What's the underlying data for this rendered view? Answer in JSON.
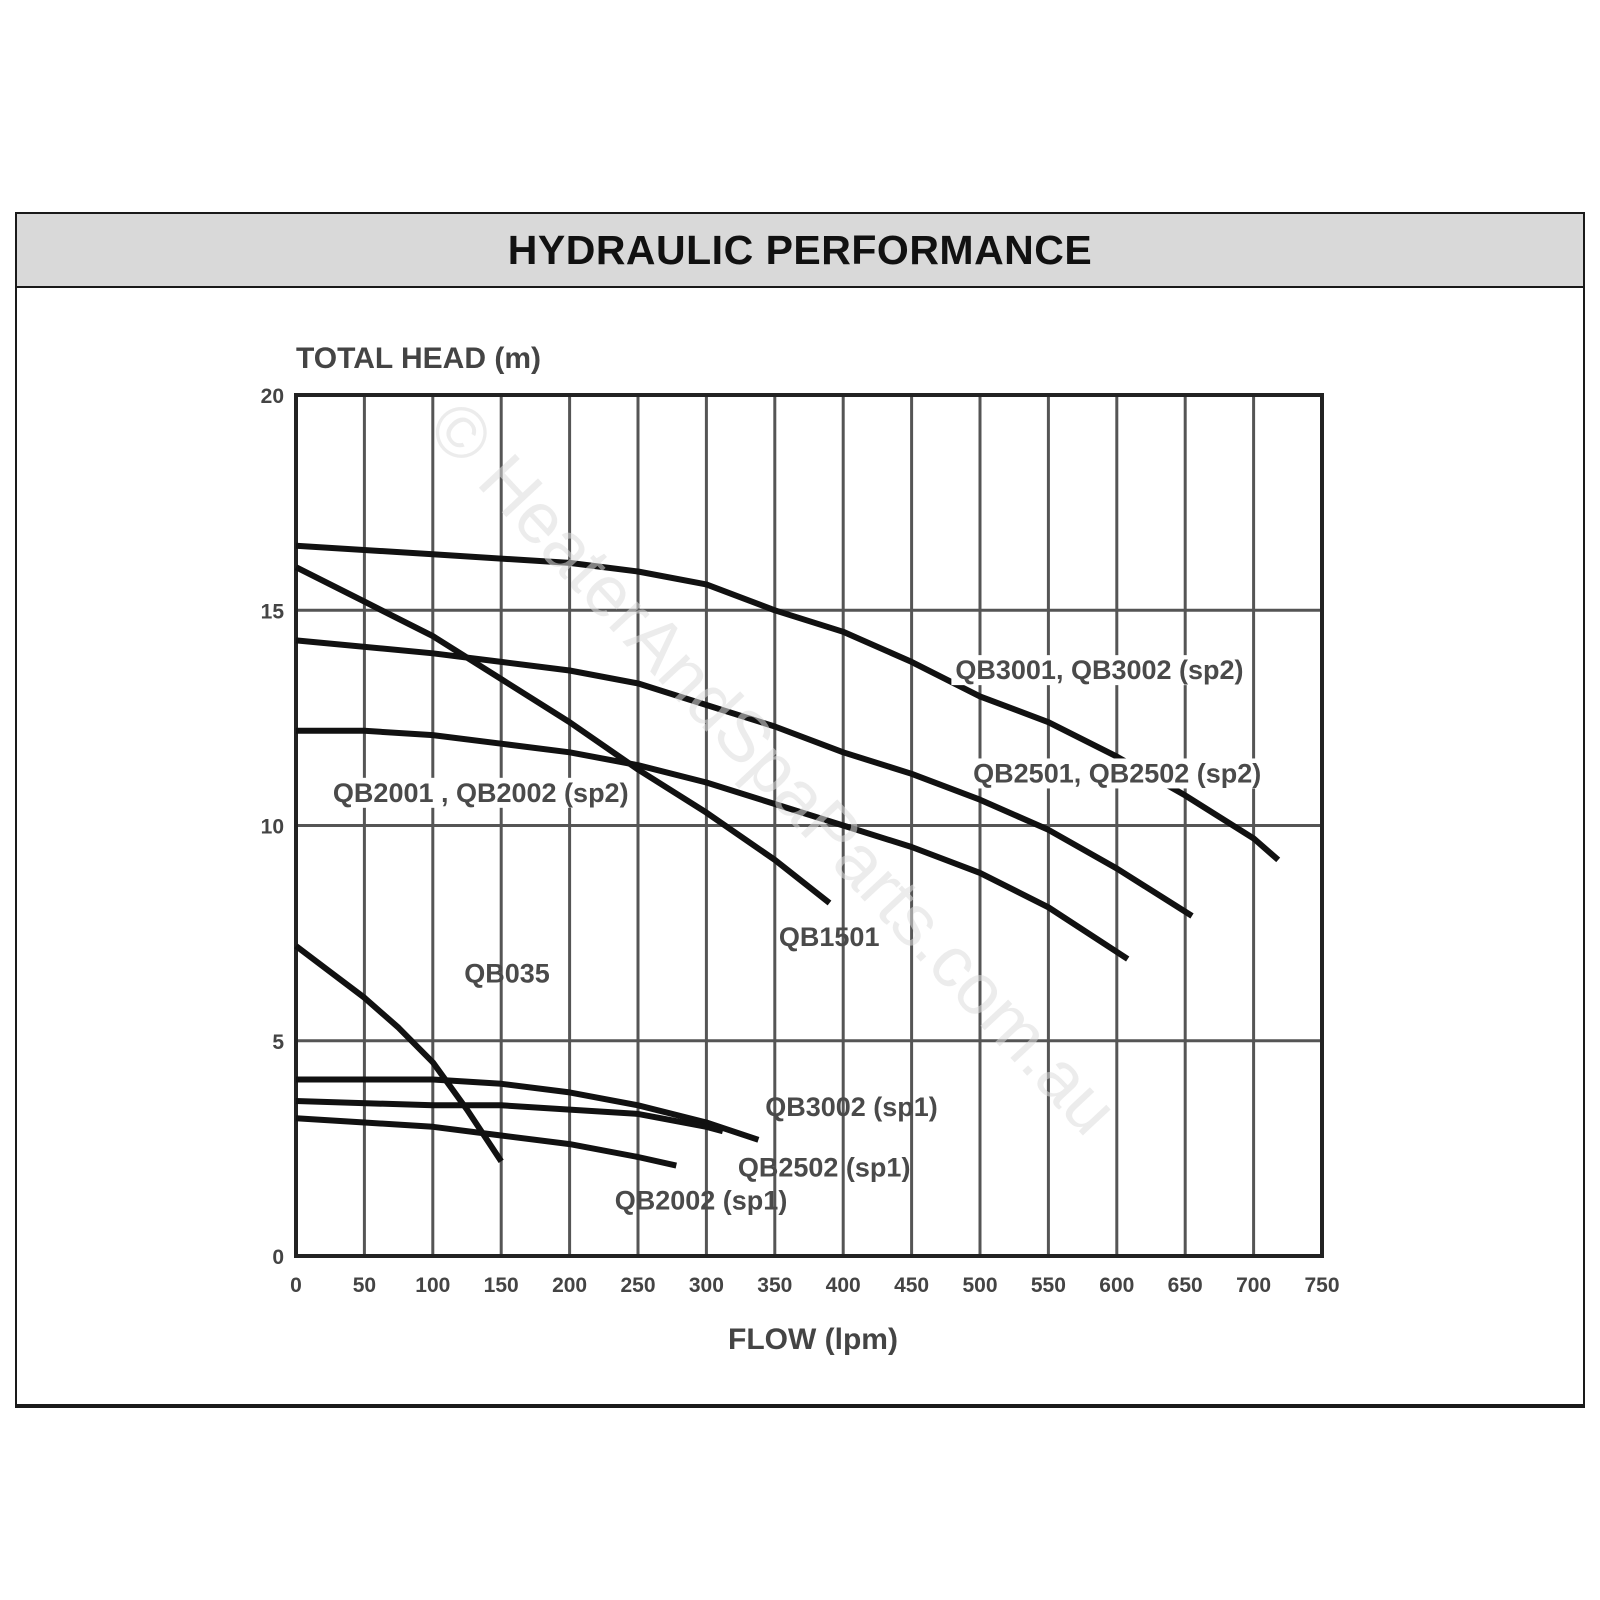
{
  "header": {
    "title": "HYDRAULIC PERFORMANCE"
  },
  "watermark": {
    "text": "© HeaterAndSpaParts.com.au"
  },
  "chart_data": {
    "type": "line",
    "title": "",
    "ylabel": "TOTAL HEAD (m)",
    "xlabel": "FLOW (lpm)",
    "xlim": [
      0,
      750
    ],
    "ylim": [
      0,
      20
    ],
    "x_ticks": [
      0,
      50,
      100,
      150,
      200,
      250,
      300,
      350,
      400,
      450,
      500,
      550,
      600,
      650,
      700,
      750
    ],
    "y_ticks": [
      0,
      5,
      10,
      15,
      20
    ],
    "grid": true,
    "legend": "none",
    "series": [
      {
        "name": "QB3001, QB3002 (sp2)",
        "points": [
          [
            0,
            16.5
          ],
          [
            100,
            16.3
          ],
          [
            200,
            16.1
          ],
          [
            250,
            15.9
          ],
          [
            300,
            15.6
          ],
          [
            350,
            15.0
          ],
          [
            400,
            14.5
          ],
          [
            450,
            13.8
          ],
          [
            500,
            13.0
          ],
          [
            550,
            12.4
          ],
          [
            600,
            11.6
          ],
          [
            650,
            10.7
          ],
          [
            700,
            9.7
          ],
          [
            718,
            9.2
          ]
        ]
      },
      {
        "name": "QB2501, QB2502 (sp2)",
        "points": [
          [
            0,
            14.3
          ],
          [
            100,
            14.0
          ],
          [
            150,
            13.8
          ],
          [
            200,
            13.6
          ],
          [
            250,
            13.3
          ],
          [
            300,
            12.8
          ],
          [
            350,
            12.3
          ],
          [
            400,
            11.7
          ],
          [
            450,
            11.2
          ],
          [
            500,
            10.6
          ],
          [
            550,
            9.9
          ],
          [
            600,
            9.0
          ],
          [
            655,
            7.9
          ]
        ]
      },
      {
        "name": "QB2001 , QB2002 (sp2)",
        "points": [
          [
            0,
            12.2
          ],
          [
            50,
            12.2
          ],
          [
            100,
            12.1
          ],
          [
            150,
            11.9
          ],
          [
            200,
            11.7
          ],
          [
            250,
            11.4
          ],
          [
            300,
            11.0
          ],
          [
            350,
            10.5
          ],
          [
            400,
            10.0
          ],
          [
            450,
            9.5
          ],
          [
            500,
            8.9
          ],
          [
            550,
            8.1
          ],
          [
            608,
            6.9
          ]
        ]
      },
      {
        "name": "QB1501",
        "points": [
          [
            0,
            16.0
          ],
          [
            50,
            15.2
          ],
          [
            100,
            14.4
          ],
          [
            150,
            13.4
          ],
          [
            200,
            12.4
          ],
          [
            250,
            11.3
          ],
          [
            300,
            10.3
          ],
          [
            350,
            9.2
          ],
          [
            390,
            8.2
          ]
        ]
      },
      {
        "name": "QB035",
        "points": [
          [
            0,
            7.2
          ],
          [
            25,
            6.6
          ],
          [
            50,
            6.0
          ],
          [
            75,
            5.3
          ],
          [
            100,
            4.5
          ],
          [
            125,
            3.4
          ],
          [
            150,
            2.2
          ]
        ]
      },
      {
        "name": "QB3002 (sp1)",
        "points": [
          [
            0,
            4.1
          ],
          [
            100,
            4.1
          ],
          [
            150,
            4.0
          ],
          [
            200,
            3.8
          ],
          [
            250,
            3.5
          ],
          [
            300,
            3.1
          ],
          [
            338,
            2.7
          ]
        ]
      },
      {
        "name": "QB2502 (sp1)",
        "points": [
          [
            0,
            3.6
          ],
          [
            100,
            3.5
          ],
          [
            150,
            3.5
          ],
          [
            200,
            3.4
          ],
          [
            250,
            3.3
          ],
          [
            300,
            3.0
          ],
          [
            312,
            2.9
          ]
        ]
      },
      {
        "name": "QB2002 (sp1)",
        "points": [
          [
            0,
            3.2
          ],
          [
            50,
            3.1
          ],
          [
            100,
            3.0
          ],
          [
            150,
            2.8
          ],
          [
            200,
            2.6
          ],
          [
            250,
            2.3
          ],
          [
            278,
            2.1
          ]
        ]
      }
    ]
  }
}
